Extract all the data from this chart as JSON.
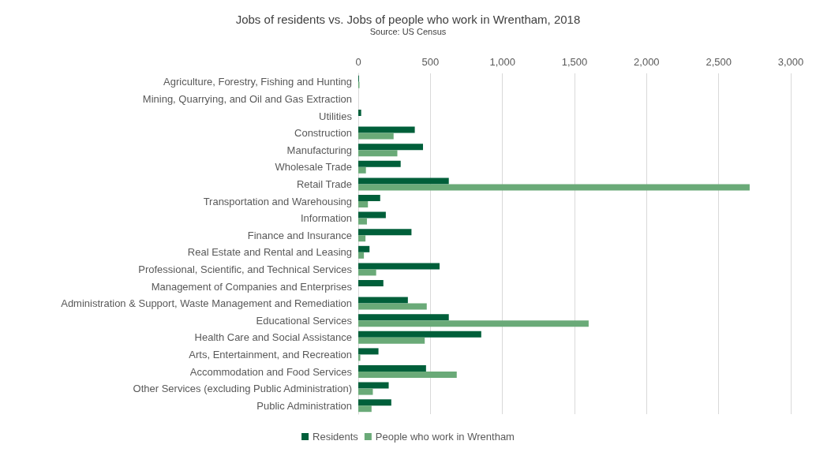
{
  "chart_data": {
    "type": "bar",
    "orientation": "horizontal",
    "title": "Jobs of residents vs. Jobs of people who work in Wrentham, 2018",
    "subtitle": "Source: US Census",
    "categories": [
      "Agriculture, Forestry, Fishing and Hunting",
      "Mining, Quarrying, and Oil and Gas Extraction",
      "Utilities",
      "Construction",
      "Manufacturing",
      "Wholesale Trade",
      "Retail Trade",
      "Transportation and Warehousing",
      "Information",
      "Finance and Insurance",
      "Real Estate and Rental and Leasing",
      "Professional, Scientific, and Technical Services",
      "Management of Companies and Enterprises",
      "Administration & Support, Waste Management and Remediation",
      "Educational Services",
      "Health Care and Social Assistance",
      "Arts, Entertainment, and Recreation",
      "Accommodation and Food Services",
      "Other Services (excluding Public Administration)",
      "Public Administration"
    ],
    "series": [
      {
        "name": "Residents",
        "color": "#005f3a",
        "values": [
          5,
          null,
          20,
          392,
          449,
          294,
          628,
          152,
          191,
          369,
          78,
          564,
          174,
          344,
          628,
          853,
          140,
          470,
          211,
          229
        ]
      },
      {
        "name": "People who work in Wrentham",
        "color": "#6aaa78",
        "values": [
          8,
          0,
          0,
          245,
          271,
          53,
          2715,
          67,
          60,
          50,
          39,
          124,
          0,
          475,
          1598,
          461,
          14,
          683,
          101,
          92
        ]
      }
    ],
    "xlim": [
      0,
      3000
    ],
    "xticks": [
      0,
      500,
      {
        "value": 1000,
        "label": "1,000"
      },
      {
        "value": 1500,
        "label": "1,500"
      },
      {
        "value": 2000,
        "label": "2,000"
      },
      {
        "value": 2500,
        "label": "2,500"
      },
      {
        "value": 3000,
        "label": "3,000"
      }
    ],
    "grid": "x",
    "legend": "bottom"
  }
}
